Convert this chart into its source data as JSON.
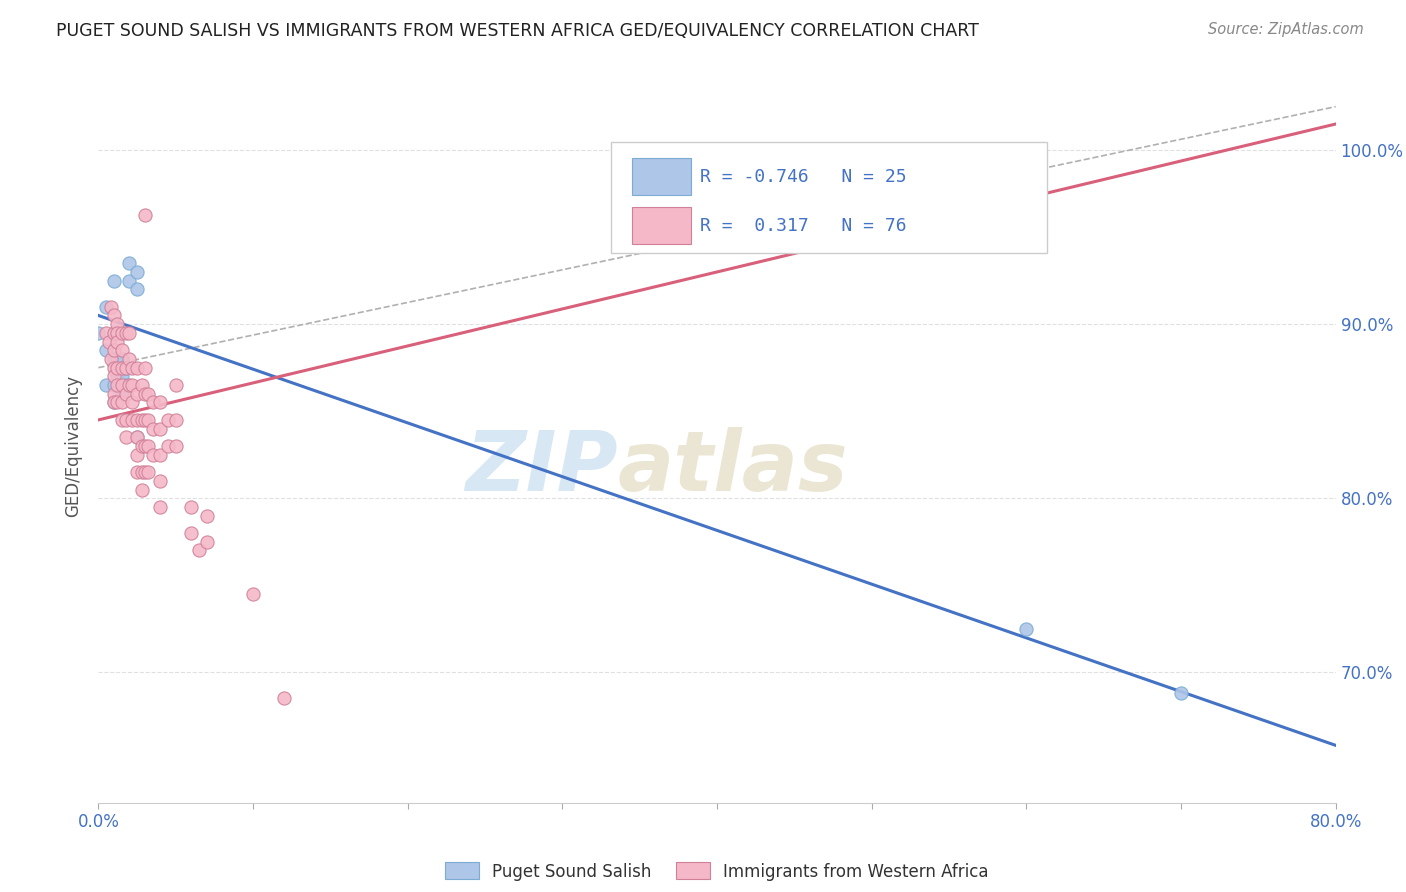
{
  "title": "PUGET SOUND SALISH VS IMMIGRANTS FROM WESTERN AFRICA GED/EQUIVALENCY CORRELATION CHART",
  "source": "Source: ZipAtlas.com",
  "ylabel": "GED/Equivalency",
  "x_min": 0.0,
  "x_max": 0.8,
  "y_min": 0.625,
  "y_max": 1.035,
  "y_ticks": [
    0.7,
    0.8,
    0.9,
    1.0
  ],
  "y_tick_labels": [
    "70.0%",
    "80.0%",
    "90.0%",
    "100.0%"
  ],
  "x_ticks": [
    0.0,
    0.1,
    0.2,
    0.3,
    0.4,
    0.5,
    0.6,
    0.7,
    0.8
  ],
  "x_tick_labels_shown": [
    "0.0%",
    "80.0%"
  ],
  "blue_R": "-0.746",
  "blue_N": "25",
  "pink_R": "0.317",
  "pink_N": "76",
  "blue_color": "#aec6e8",
  "pink_color": "#f5b8c8",
  "blue_line_color": "#4472c4",
  "pink_line_color": "#d9607a",
  "dashed_line_color": "#b0b0b0",
  "watermark_zip": "ZIP",
  "watermark_atlas": "atlas",
  "legend_label_blue": "Puget Sound Salish",
  "legend_label_pink": "Immigrants from Western Africa",
  "blue_points": [
    [
      0.0,
      0.895
    ],
    [
      0.005,
      0.91
    ],
    [
      0.005,
      0.885
    ],
    [
      0.005,
      0.865
    ],
    [
      0.01,
      0.925
    ],
    [
      0.01,
      0.895
    ],
    [
      0.01,
      0.88
    ],
    [
      0.01,
      0.865
    ],
    [
      0.01,
      0.855
    ],
    [
      0.012,
      0.895
    ],
    [
      0.012,
      0.88
    ],
    [
      0.012,
      0.87
    ],
    [
      0.015,
      0.88
    ],
    [
      0.015,
      0.875
    ],
    [
      0.015,
      0.87
    ],
    [
      0.015,
      0.86
    ],
    [
      0.018,
      0.875
    ],
    [
      0.018,
      0.865
    ],
    [
      0.02,
      0.935
    ],
    [
      0.02,
      0.925
    ],
    [
      0.025,
      0.93
    ],
    [
      0.025,
      0.92
    ],
    [
      0.025,
      0.835
    ],
    [
      0.6,
      0.725
    ],
    [
      0.7,
      0.688
    ]
  ],
  "pink_points": [
    [
      0.03,
      0.963
    ],
    [
      0.005,
      0.895
    ],
    [
      0.007,
      0.89
    ],
    [
      0.008,
      0.91
    ],
    [
      0.008,
      0.88
    ],
    [
      0.01,
      0.905
    ],
    [
      0.01,
      0.895
    ],
    [
      0.01,
      0.885
    ],
    [
      0.01,
      0.875
    ],
    [
      0.01,
      0.87
    ],
    [
      0.01,
      0.86
    ],
    [
      0.01,
      0.855
    ],
    [
      0.012,
      0.9
    ],
    [
      0.012,
      0.895
    ],
    [
      0.012,
      0.89
    ],
    [
      0.012,
      0.875
    ],
    [
      0.012,
      0.865
    ],
    [
      0.012,
      0.855
    ],
    [
      0.015,
      0.895
    ],
    [
      0.015,
      0.885
    ],
    [
      0.015,
      0.875
    ],
    [
      0.015,
      0.865
    ],
    [
      0.015,
      0.855
    ],
    [
      0.015,
      0.845
    ],
    [
      0.018,
      0.895
    ],
    [
      0.018,
      0.875
    ],
    [
      0.018,
      0.86
    ],
    [
      0.018,
      0.845
    ],
    [
      0.018,
      0.835
    ],
    [
      0.02,
      0.895
    ],
    [
      0.02,
      0.88
    ],
    [
      0.02,
      0.865
    ],
    [
      0.022,
      0.875
    ],
    [
      0.022,
      0.865
    ],
    [
      0.022,
      0.855
    ],
    [
      0.022,
      0.845
    ],
    [
      0.025,
      0.875
    ],
    [
      0.025,
      0.86
    ],
    [
      0.025,
      0.845
    ],
    [
      0.025,
      0.835
    ],
    [
      0.025,
      0.825
    ],
    [
      0.025,
      0.815
    ],
    [
      0.028,
      0.865
    ],
    [
      0.028,
      0.845
    ],
    [
      0.028,
      0.83
    ],
    [
      0.028,
      0.815
    ],
    [
      0.028,
      0.805
    ],
    [
      0.03,
      0.875
    ],
    [
      0.03,
      0.86
    ],
    [
      0.03,
      0.845
    ],
    [
      0.03,
      0.83
    ],
    [
      0.03,
      0.815
    ],
    [
      0.032,
      0.86
    ],
    [
      0.032,
      0.845
    ],
    [
      0.032,
      0.83
    ],
    [
      0.032,
      0.815
    ],
    [
      0.035,
      0.855
    ],
    [
      0.035,
      0.84
    ],
    [
      0.035,
      0.825
    ],
    [
      0.04,
      0.855
    ],
    [
      0.04,
      0.84
    ],
    [
      0.04,
      0.825
    ],
    [
      0.04,
      0.81
    ],
    [
      0.04,
      0.795
    ],
    [
      0.045,
      0.845
    ],
    [
      0.045,
      0.83
    ],
    [
      0.05,
      0.865
    ],
    [
      0.05,
      0.845
    ],
    [
      0.05,
      0.83
    ],
    [
      0.06,
      0.795
    ],
    [
      0.06,
      0.78
    ],
    [
      0.065,
      0.77
    ],
    [
      0.07,
      0.79
    ],
    [
      0.07,
      0.775
    ],
    [
      0.1,
      0.745
    ],
    [
      0.12,
      0.685
    ]
  ],
  "blue_line_x": [
    0.0,
    0.8
  ],
  "blue_line_y": [
    0.905,
    0.658
  ],
  "pink_line_x": [
    0.0,
    0.8
  ],
  "pink_line_y": [
    0.845,
    1.015
  ],
  "dashed_line_x": [
    0.0,
    0.8
  ],
  "dashed_line_y": [
    0.875,
    1.025
  ],
  "background_color": "#ffffff",
  "grid_color": "#e0e0e0"
}
